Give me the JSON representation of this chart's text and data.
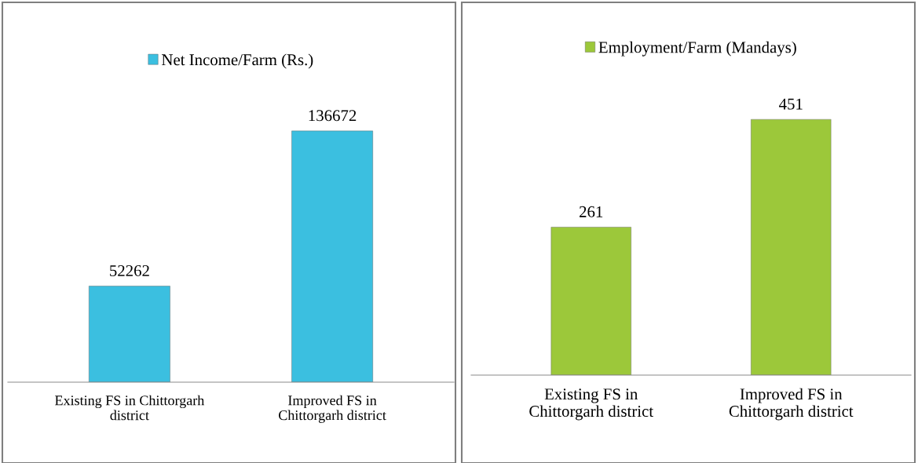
{
  "chart_data": [
    {
      "type": "bar",
      "categories": [
        "Existing FS in Chittorgarh\ndistrict",
        "Improved FS in\nChittorgarh district"
      ],
      "series": [
        {
          "name": "Net Income/Farm (Rs.)",
          "color": "#3bbfe0",
          "values": [
            52262,
            136672
          ]
        }
      ],
      "data_labels": true,
      "legend": "top",
      "grid": false,
      "tick_labels": "x"
    },
    {
      "type": "bar",
      "categories": [
        "Existing FS in\nChittorgarh district",
        "Improved FS in\nChittorgarh district"
      ],
      "series": [
        {
          "name": "Employment/Farm (Mandays)",
          "color": "#9cc83a",
          "values": [
            261,
            451
          ]
        }
      ],
      "data_labels": true,
      "legend": "top",
      "grid": false,
      "tick_labels": "x"
    }
  ]
}
